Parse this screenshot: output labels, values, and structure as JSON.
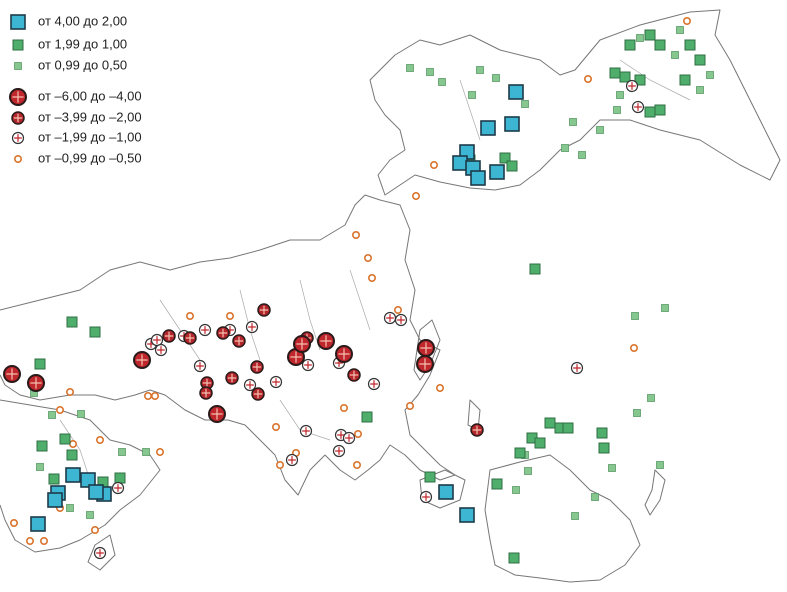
{
  "legend": {
    "items": [
      "от 4,00 до 2,00",
      "от 1,99 до 1,00",
      "от 0,99 до 0,50",
      "от –6,00 до –4,00",
      "от –3,99 до –2,00",
      "от –1,99 до –1,00",
      "от –0,99 до –0,50"
    ]
  }
}
